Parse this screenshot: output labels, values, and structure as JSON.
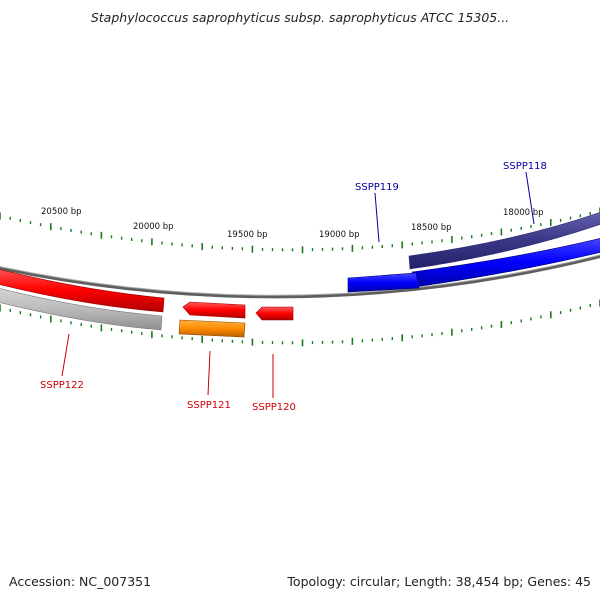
{
  "title": "Staphylococcus saprophyticus subsp. saprophyticus ATCC 15305...",
  "footer": {
    "accession": "Accession: NC_007351",
    "summary": "Topology: circular; Length: 38,454 bp; Genes: 45"
  },
  "scale_labels": [
    "20500 bp",
    "20000 bp",
    "19500 bp",
    "19000 bp",
    "18500 bp",
    "18000 bp"
  ],
  "genes": [
    {
      "id": "SSPP118",
      "color": "#00009c"
    },
    {
      "id": "SSPP119",
      "color": "#00009c"
    },
    {
      "id": "SSPP120",
      "color": "#cc0000"
    },
    {
      "id": "SSPP121",
      "color": "#cc0000"
    },
    {
      "id": "SSPP122",
      "color": "#cc0000"
    }
  ],
  "colors": {
    "forward_cds": "#0000ff",
    "forward_gene": "#3c3888",
    "reverse_cds": "#ff0000",
    "reverse_gene": "#b0b0b0",
    "reverse_other": "#ff8c00",
    "backbone": "#6e6e6e",
    "tick": "#1a7a1a",
    "forward_label": "#00009c",
    "reverse_label": "#cc0000"
  }
}
